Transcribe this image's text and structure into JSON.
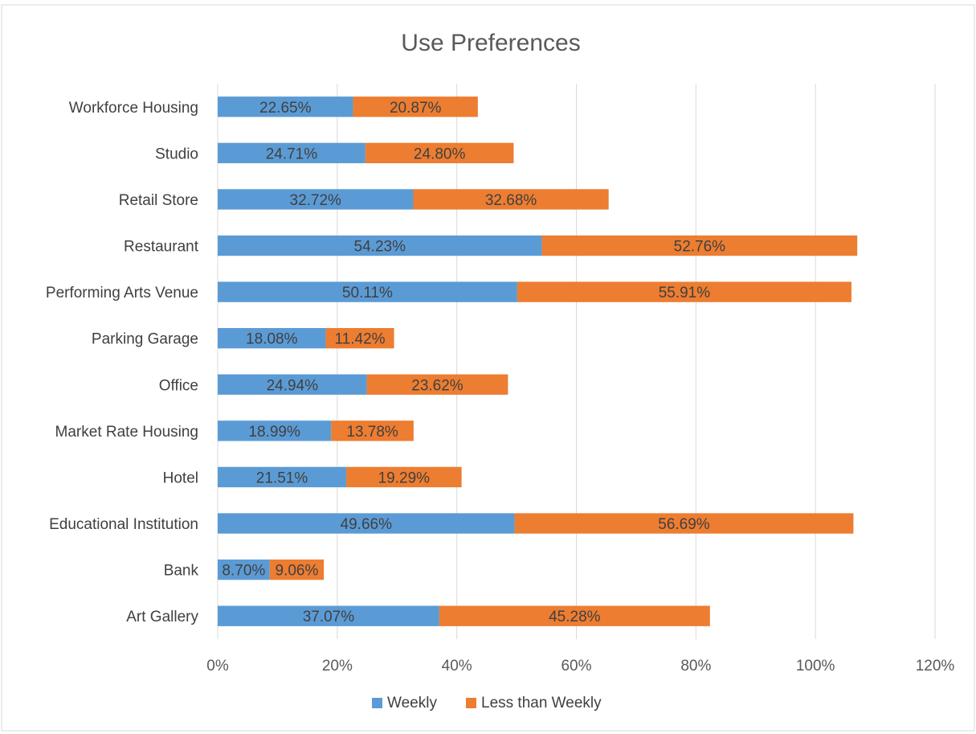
{
  "chart_data": {
    "type": "bar",
    "orientation": "horizontal",
    "stacked": true,
    "title": "Use Preferences",
    "categories": [
      "Workforce Housing",
      "Studio",
      "Retail Store",
      "Restaurant",
      "Performing Arts Venue",
      "Parking Garage",
      "Office",
      "Market Rate Housing",
      "Hotel",
      "Educational Institution",
      "Bank",
      "Art Gallery"
    ],
    "series": [
      {
        "name": "Weekly",
        "color": "#5B9BD5",
        "values": [
          22.65,
          24.71,
          32.72,
          54.23,
          50.11,
          18.08,
          24.94,
          18.99,
          21.51,
          49.66,
          8.7,
          37.07
        ],
        "labels": [
          "22.65%",
          "24.71%",
          "32.72%",
          "54.23%",
          "50.11%",
          "18.08%",
          "24.94%",
          "18.99%",
          "21.51%",
          "49.66%",
          "8.70%",
          "37.07%"
        ]
      },
      {
        "name": "Less than Weekly",
        "color": "#ED7D31",
        "values": [
          20.87,
          24.8,
          32.68,
          52.76,
          55.91,
          11.42,
          23.62,
          13.78,
          19.29,
          56.69,
          9.06,
          45.28
        ],
        "labels": [
          "20.87%",
          "24.80%",
          "32.68%",
          "52.76%",
          "55.91%",
          "11.42%",
          "23.62%",
          "13.78%",
          "19.29%",
          "56.69%",
          "9.06%",
          "45.28%"
        ]
      }
    ],
    "xlim": [
      0,
      120
    ],
    "xticks": [
      0,
      20,
      40,
      60,
      80,
      100,
      120
    ],
    "xtick_labels": [
      "0%",
      "20%",
      "40%",
      "60%",
      "80%",
      "100%",
      "120%"
    ],
    "grid": true,
    "legend": "bottom"
  }
}
